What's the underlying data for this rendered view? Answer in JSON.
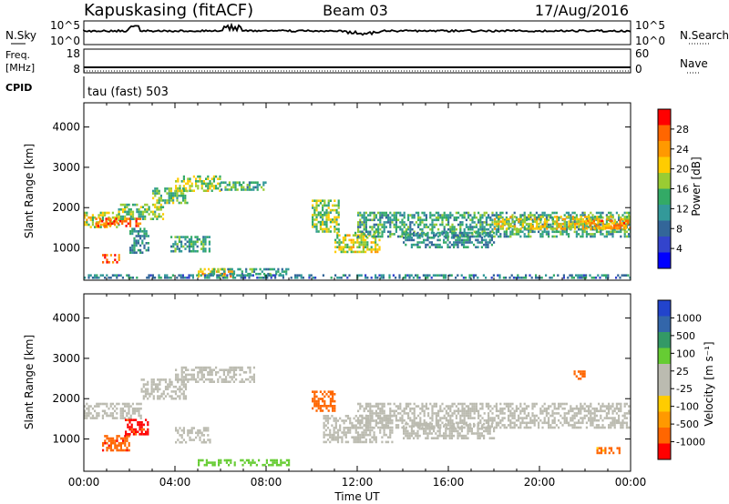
{
  "header": {
    "station": "Kapuskasing (fitACF)",
    "beam": "Beam 03",
    "date": "17/Aug/2016"
  },
  "strip_labels": {
    "nsky": "N.Sky",
    "freq": "Freq.",
    "mhz": "[MHz]",
    "cpid": "CPID",
    "nsearch": "N.Search",
    "nave": "Nave",
    "cpid_value": "tau (fast) 503",
    "nsky_ticks": [
      "10^5",
      "10^0"
    ],
    "nsearch_ticks": [
      "10^5",
      "10^0"
    ],
    "freq_ticks": [
      "18",
      "8"
    ],
    "nave_ticks": [
      "60",
      "0"
    ]
  },
  "chart_data": [
    {
      "type": "heatmap",
      "panel": "power",
      "ylabel": "Slant Range [km]",
      "ylim": [
        200,
        4600
      ],
      "yticks": [
        "1000",
        "2000",
        "3000",
        "4000"
      ],
      "xlim": [
        0,
        24
      ],
      "colorbar_label": "Power [dB]",
      "colorbar_ticks": [
        "28",
        "24",
        "20",
        "16",
        "12",
        "8",
        "4"
      ],
      "colorbar_colors": [
        "#ff0000",
        "#ff6600",
        "#ff9900",
        "#ffcc00",
        "#99cc33",
        "#33aa66",
        "#339999",
        "#336699",
        "#3344cc",
        "#0000ff"
      ],
      "regions": [
        {
          "t0": 0.0,
          "t1": 1.5,
          "r0": 1500,
          "r1": 1900,
          "v": 18
        },
        {
          "t0": 0.5,
          "t1": 2.5,
          "r0": 1550,
          "r1": 1750,
          "v": 26
        },
        {
          "t0": 0.8,
          "t1": 1.6,
          "r0": 650,
          "r1": 850,
          "v": 27
        },
        {
          "t0": 1.5,
          "t1": 3.5,
          "r0": 1700,
          "r1": 2100,
          "v": 15
        },
        {
          "t0": 2.0,
          "t1": 2.8,
          "r0": 900,
          "r1": 1500,
          "v": 10
        },
        {
          "t0": 3.0,
          "t1": 4.5,
          "r0": 2100,
          "r1": 2500,
          "v": 14
        },
        {
          "t0": 4.0,
          "t1": 6.0,
          "r0": 2400,
          "r1": 2800,
          "v": 17
        },
        {
          "t0": 3.8,
          "t1": 5.5,
          "r0": 900,
          "r1": 1300,
          "v": 12
        },
        {
          "t0": 5.0,
          "t1": 6.5,
          "r0": 300,
          "r1": 500,
          "v": 22
        },
        {
          "t0": 5.5,
          "t1": 9.0,
          "r0": 350,
          "r1": 500,
          "v": 11
        },
        {
          "t0": 6.0,
          "t1": 8.0,
          "r0": 2450,
          "r1": 2650,
          "v": 12
        },
        {
          "t0": 10.0,
          "t1": 11.2,
          "r0": 1400,
          "r1": 2200,
          "v": 16
        },
        {
          "t0": 11.0,
          "t1": 13.0,
          "r0": 900,
          "r1": 1400,
          "v": 18
        },
        {
          "t0": 12.0,
          "t1": 24.0,
          "r0": 1300,
          "r1": 1900,
          "v": 12
        },
        {
          "t0": 14.0,
          "t1": 18.0,
          "r0": 1000,
          "r1": 1400,
          "v": 10
        },
        {
          "t0": 18.0,
          "t1": 24.0,
          "r0": 1450,
          "r1": 1800,
          "v": 19
        },
        {
          "t0": 22.0,
          "t1": 24.0,
          "r0": 1500,
          "r1": 1700,
          "v": 24
        },
        {
          "t0": 0.0,
          "t1": 24.0,
          "r0": 250,
          "r1": 350,
          "v": 9
        }
      ]
    },
    {
      "type": "heatmap",
      "panel": "velocity",
      "ylabel": "Slant Range [km]",
      "ylim": [
        200,
        4600
      ],
      "yticks": [
        "1000",
        "2000",
        "3000",
        "4000"
      ],
      "xlabel": "Time UT",
      "xticks": [
        "00:00",
        "04:00",
        "08:00",
        "12:00",
        "16:00",
        "20:00",
        "00:00"
      ],
      "xlim": [
        0,
        24
      ],
      "colorbar_label": "Velocity [m s⁻¹]",
      "colorbar_ticks": [
        "1000",
        "500",
        "100",
        "25",
        "-25",
        "-100",
        "-500",
        "-1000"
      ],
      "colorbar_colors": [
        "#2244cc",
        "#3366aa",
        "#339966",
        "#66cc33",
        "#bbbbb0",
        "#bbbbb0",
        "#ffcc00",
        "#ff9900",
        "#ff6600",
        "#ff0000"
      ],
      "regions": [
        {
          "t0": 0.0,
          "t1": 2.5,
          "r0": 1500,
          "r1": 1900,
          "v": 0
        },
        {
          "t0": 0.8,
          "t1": 2.0,
          "r0": 700,
          "r1": 1100,
          "v": -400
        },
        {
          "t0": 1.8,
          "t1": 2.8,
          "r0": 1100,
          "r1": 1500,
          "v": -600
        },
        {
          "t0": 2.5,
          "t1": 4.5,
          "r0": 2000,
          "r1": 2500,
          "v": 0
        },
        {
          "t0": 4.0,
          "t1": 7.5,
          "r0": 2400,
          "r1": 2800,
          "v": 0
        },
        {
          "t0": 4.0,
          "t1": 5.5,
          "r0": 900,
          "r1": 1300,
          "v": 0
        },
        {
          "t0": 5.0,
          "t1": 9.0,
          "r0": 350,
          "r1": 500,
          "v": 50
        },
        {
          "t0": 10.0,
          "t1": 11.0,
          "r0": 1700,
          "r1": 2200,
          "v": -300
        },
        {
          "t0": 10.5,
          "t1": 13.5,
          "r0": 900,
          "r1": 1600,
          "v": 0
        },
        {
          "t0": 12.0,
          "t1": 24.0,
          "r0": 1300,
          "r1": 1900,
          "v": 0
        },
        {
          "t0": 14.0,
          "t1": 18.0,
          "r0": 1000,
          "r1": 1400,
          "v": 0
        },
        {
          "t0": 22.5,
          "t1": 23.5,
          "r0": 650,
          "r1": 800,
          "v": -200
        },
        {
          "t0": 21.5,
          "t1": 22.0,
          "r0": 2500,
          "r1": 2700,
          "v": -300
        }
      ]
    }
  ]
}
